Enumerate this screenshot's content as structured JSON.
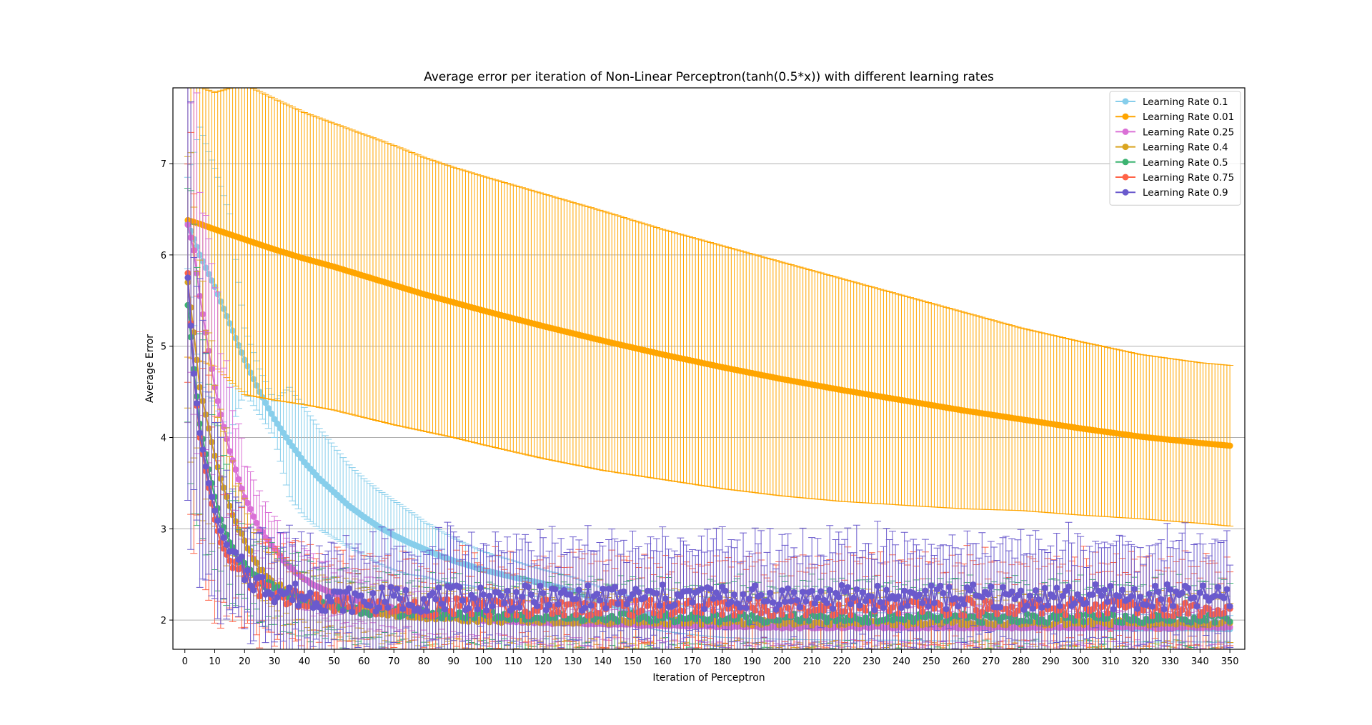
{
  "chart_data": {
    "type": "line",
    "title": "Average error per iteration of Non-Linear Perceptron(tanh(0.5*x)) with different learning rates",
    "xlabel": "Iteration of Perceptron",
    "ylabel": "Average Error",
    "xlim": [
      -4,
      355
    ],
    "ylim": [
      1.68,
      7.83
    ],
    "xticks": [
      0,
      10,
      20,
      30,
      40,
      50,
      60,
      70,
      80,
      90,
      100,
      110,
      120,
      130,
      140,
      150,
      160,
      170,
      180,
      190,
      200,
      210,
      220,
      230,
      240,
      250,
      260,
      270,
      280,
      290,
      300,
      310,
      320,
      330,
      340,
      350
    ],
    "yticks": [
      2,
      3,
      4,
      5,
      6,
      7
    ],
    "grid": "y-major",
    "legend_position": "top-right",
    "error_bars": true,
    "n_iterations": 350,
    "series": [
      {
        "name": "Learning Rate 0.1",
        "color": "#87CEEB",
        "x": [
          1,
          5,
          10,
          15,
          20,
          25,
          30,
          35,
          40,
          45,
          50,
          55,
          60,
          65,
          70,
          75,
          80,
          85,
          90,
          95,
          100,
          110,
          120,
          130,
          140,
          150,
          160,
          170,
          180,
          190,
          200,
          220,
          240,
          260,
          280,
          300,
          320,
          340,
          350
        ],
        "y": [
          6.35,
          6.0,
          5.65,
          5.25,
          4.85,
          4.5,
          4.2,
          3.95,
          3.73,
          3.55,
          3.4,
          3.25,
          3.13,
          3.02,
          2.93,
          2.85,
          2.78,
          2.71,
          2.65,
          2.6,
          2.55,
          2.47,
          2.4,
          2.32,
          2.2,
          2.1,
          2.03,
          1.99,
          1.96,
          1.95,
          1.94,
          1.93,
          1.93,
          1.92,
          1.92,
          1.92,
          1.91,
          1.91,
          1.9
        ],
        "err": [
          0.5,
          1.4,
          1.3,
          1.2,
          0.35,
          0.25,
          0.2,
          0.6,
          0.6,
          0.55,
          0.5,
          0.45,
          0.42,
          0.4,
          0.38,
          0.35,
          0.3,
          0.28,
          0.25,
          0.22,
          0.2,
          0.18,
          0.15,
          0.15,
          0.15,
          0.15,
          0.15,
          0.15,
          0.15,
          0.15,
          0.15,
          0.15,
          0.15,
          0.15,
          0.15,
          0.15,
          0.15,
          0.15,
          0.15
        ]
      },
      {
        "name": "Learning Rate 0.01",
        "color": "#FFA500",
        "x": [
          1,
          5,
          10,
          20,
          30,
          40,
          50,
          60,
          70,
          80,
          90,
          100,
          120,
          140,
          160,
          180,
          200,
          220,
          240,
          260,
          280,
          300,
          320,
          340,
          350
        ],
        "y": [
          6.38,
          6.34,
          6.28,
          6.17,
          6.06,
          5.96,
          5.87,
          5.77,
          5.67,
          5.57,
          5.48,
          5.39,
          5.22,
          5.06,
          4.91,
          4.77,
          4.64,
          4.52,
          4.41,
          4.3,
          4.2,
          4.1,
          4.01,
          3.94,
          3.91
        ],
        "err": [
          1.5,
          1.5,
          1.5,
          1.7,
          1.65,
          1.6,
          1.57,
          1.55,
          1.53,
          1.5,
          1.48,
          1.47,
          1.45,
          1.42,
          1.37,
          1.33,
          1.28,
          1.22,
          1.15,
          1.08,
          1.0,
          0.95,
          0.9,
          0.88,
          0.88
        ]
      },
      {
        "name": "Learning Rate 0.25",
        "color": "#DA70D6",
        "x": [
          1,
          3,
          5,
          8,
          10,
          12,
          15,
          18,
          20,
          25,
          30,
          35,
          40,
          45,
          50,
          55,
          60,
          70,
          80,
          90,
          100,
          120,
          140,
          160,
          180,
          200,
          250,
          300,
          350
        ],
        "y": [
          6.33,
          6.05,
          5.55,
          4.95,
          4.55,
          4.25,
          3.85,
          3.55,
          3.35,
          3.0,
          2.78,
          2.58,
          2.45,
          2.36,
          2.29,
          2.24,
          2.19,
          2.13,
          2.07,
          2.03,
          2.0,
          1.97,
          1.95,
          1.94,
          1.93,
          1.92,
          1.92,
          1.92,
          1.92
        ],
        "err": [
          1.8,
          1.7,
          1.5,
          1.2,
          1.0,
          0.85,
          0.65,
          0.5,
          0.45,
          0.35,
          0.3,
          0.28,
          0.27,
          0.26,
          0.25,
          0.25,
          0.24,
          0.23,
          0.22,
          0.2,
          0.2,
          0.2,
          0.2,
          0.2,
          0.2,
          0.2,
          0.2,
          0.2,
          0.2
        ]
      },
      {
        "name": "Learning Rate 0.4",
        "color": "#DAA520",
        "x": [
          1,
          3,
          5,
          8,
          10,
          12,
          15,
          18,
          20,
          25,
          30,
          35,
          40,
          45,
          50,
          60,
          70,
          80,
          90,
          100,
          120,
          150,
          200,
          250,
          300,
          350
        ],
        "y": [
          5.7,
          5.15,
          4.55,
          4.1,
          3.8,
          3.55,
          3.25,
          3.0,
          2.85,
          2.55,
          2.4,
          2.3,
          2.23,
          2.18,
          2.15,
          2.1,
          2.06,
          2.04,
          2.02,
          2.0,
          1.99,
          1.98,
          1.97,
          1.97,
          1.97,
          1.97
        ],
        "err": [
          1.5,
          1.4,
          1.3,
          1.0,
          0.85,
          0.7,
          0.55,
          0.45,
          0.4,
          0.33,
          0.3,
          0.28,
          0.27,
          0.27,
          0.27,
          0.27,
          0.27,
          0.27,
          0.27,
          0.27,
          0.27,
          0.27,
          0.27,
          0.27,
          0.27,
          0.27
        ]
      },
      {
        "name": "Learning Rate 0.5",
        "color": "#3CB371",
        "x": [
          1,
          3,
          5,
          8,
          10,
          12,
          15,
          18,
          20,
          25,
          30,
          35,
          40,
          45,
          50,
          60,
          70,
          80,
          90,
          100,
          120,
          150,
          200,
          250,
          300,
          350
        ],
        "y": [
          5.45,
          4.75,
          4.15,
          3.65,
          3.35,
          3.1,
          2.85,
          2.68,
          2.58,
          2.43,
          2.33,
          2.27,
          2.22,
          2.18,
          2.15,
          2.11,
          2.09,
          2.07,
          2.06,
          2.05,
          2.04,
          2.03,
          2.02,
          2.02,
          2.02,
          2.02
        ],
        "err": [
          1.7,
          1.5,
          1.3,
          1.0,
          0.9,
          0.75,
          0.6,
          0.5,
          0.45,
          0.4,
          0.38,
          0.36,
          0.35,
          0.35,
          0.35,
          0.35,
          0.35,
          0.35,
          0.35,
          0.35,
          0.35,
          0.35,
          0.35,
          0.35,
          0.35,
          0.35
        ]
      },
      {
        "name": "Learning Rate 0.75",
        "color": "#FF6347",
        "x": [
          1,
          3,
          5,
          8,
          10,
          12,
          15,
          18,
          20,
          25,
          30,
          35,
          40,
          45,
          50,
          60,
          70,
          80,
          90,
          100,
          120,
          150,
          200,
          250,
          300,
          350
        ],
        "y": [
          5.8,
          4.7,
          4.0,
          3.45,
          3.1,
          2.85,
          2.65,
          2.52,
          2.45,
          2.35,
          2.28,
          2.24,
          2.2,
          2.18,
          2.16,
          2.14,
          2.14,
          2.14,
          2.14,
          2.14,
          2.14,
          2.14,
          2.14,
          2.14,
          2.14,
          2.14
        ],
        "err": [
          1.7,
          1.6,
          1.4,
          1.1,
          0.9,
          0.75,
          0.6,
          0.55,
          0.5,
          0.48,
          0.47,
          0.46,
          0.46,
          0.46,
          0.46,
          0.46,
          0.46,
          0.46,
          0.46,
          0.46,
          0.46,
          0.46,
          0.46,
          0.46,
          0.46,
          0.46
        ]
      },
      {
        "name": "Learning Rate 0.9",
        "color": "#6A5ACD",
        "x": [
          1,
          3,
          5,
          8,
          10,
          12,
          15,
          18,
          20,
          25,
          30,
          35,
          40,
          45,
          50,
          60,
          70,
          80,
          90,
          100,
          120,
          150,
          200,
          250,
          300,
          350
        ],
        "y": [
          5.75,
          4.7,
          4.05,
          3.5,
          3.2,
          2.98,
          2.75,
          2.6,
          2.52,
          2.4,
          2.33,
          2.29,
          2.26,
          2.24,
          2.23,
          2.22,
          2.23,
          2.23,
          2.24,
          2.24,
          2.24,
          2.25,
          2.25,
          2.25,
          2.25,
          2.25
        ],
        "err": [
          2.0,
          1.8,
          1.6,
          1.3,
          1.1,
          0.9,
          0.75,
          0.65,
          0.6,
          0.55,
          0.55,
          0.55,
          0.55,
          0.55,
          0.55,
          0.55,
          0.55,
          0.55,
          0.55,
          0.55,
          0.55,
          0.55,
          0.55,
          0.55,
          0.55,
          0.55
        ]
      }
    ]
  }
}
